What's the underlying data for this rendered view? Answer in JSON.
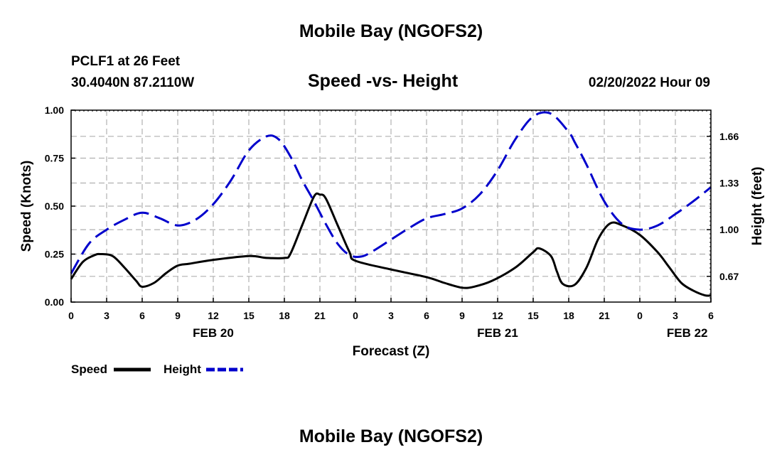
{
  "header": {
    "title": "Mobile Bay (NGOFS2)",
    "station": "PCLF1 at 26 Feet",
    "coords": "30.4040N  87.2110W",
    "datetime": "02/20/2022 Hour 09"
  },
  "footer": {
    "title": "Mobile Bay (NGOFS2)"
  },
  "colors": {
    "speed": "#000000",
    "height": "#0000cc",
    "grid": "#b0b0b0"
  },
  "chart_data": {
    "type": "line",
    "title": "Speed -vs- Height",
    "xlabel": "Forecast (Z)",
    "ylabel": "Speed (Knots)",
    "y2label": "Height (feet)",
    "xlim": [
      0,
      54
    ],
    "ylim": [
      0,
      1.0
    ],
    "y2lim": [
      0.488,
      1.845
    ],
    "grid": true,
    "x_ticks": [
      0,
      3,
      6,
      9,
      12,
      15,
      18,
      21,
      24,
      27,
      30,
      33,
      36,
      39,
      42,
      45,
      48,
      51,
      54
    ],
    "x_tick_labels": [
      "0",
      "3",
      "6",
      "9",
      "12",
      "15",
      "18",
      "21",
      "0",
      "3",
      "6",
      "9",
      "12",
      "15",
      "18",
      "21",
      "0",
      "3",
      "6"
    ],
    "day_labels": [
      {
        "label": "FEB 20",
        "x": 12
      },
      {
        "label": "FEB 21",
        "x": 36
      },
      {
        "label": "FEB 22",
        "x": 52
      }
    ],
    "y_ticks": [
      0,
      0.25,
      0.5,
      0.75,
      1.0
    ],
    "y_tick_labels": [
      "0.00",
      "0.25",
      "0.50",
      "0.75",
      "1.00"
    ],
    "y2_ticks": [
      0.67,
      1.0,
      1.33,
      1.66
    ],
    "y2_tick_labels": [
      "0.67",
      "1.00",
      "1.33",
      "1.66"
    ],
    "legend": [
      {
        "label": "Speed",
        "style": "solid"
      },
      {
        "label": "Height",
        "style": "dashed"
      }
    ],
    "series": [
      {
        "name": "Speed",
        "axis": "left",
        "x": [
          0,
          1,
          2,
          2.5,
          3.5,
          4.5,
          5.5,
          6,
          7,
          8,
          9,
          10,
          12,
          15,
          16.5,
          18,
          18.5,
          19.5,
          20.5,
          21,
          21.5,
          22.5,
          23.5,
          24,
          27,
          30,
          31.5,
          33,
          34,
          35.5,
          37.5,
          39,
          39.5,
          40.5,
          41,
          41.5,
          42.5,
          43.5,
          44.5,
          45.5,
          46.5,
          48,
          49.5,
          50.5,
          51.5,
          52.5,
          53.5,
          54
        ],
        "values": [
          0.12,
          0.21,
          0.245,
          0.25,
          0.24,
          0.18,
          0.11,
          0.08,
          0.1,
          0.15,
          0.19,
          0.2,
          0.22,
          0.24,
          0.23,
          0.23,
          0.25,
          0.4,
          0.55,
          0.56,
          0.54,
          0.4,
          0.26,
          0.215,
          0.17,
          0.13,
          0.1,
          0.075,
          0.08,
          0.11,
          0.18,
          0.26,
          0.28,
          0.24,
          0.16,
          0.095,
          0.09,
          0.18,
          0.33,
          0.41,
          0.4,
          0.35,
          0.26,
          0.18,
          0.1,
          0.06,
          0.035,
          0.035
        ]
      },
      {
        "name": "Height",
        "axis": "right",
        "x": [
          0,
          1.5,
          3,
          4.5,
          6,
          7.5,
          9,
          10.5,
          12,
          13.5,
          15,
          16.5,
          17.5,
          18.5,
          19.5,
          20.5,
          21.5,
          22.5,
          23.5,
          24.5,
          25.5,
          27,
          28.5,
          30,
          31.5,
          33,
          34.5,
          36,
          37.5,
          39,
          40.5,
          42,
          42.5,
          43.5,
          45,
          46.5,
          48,
          49.5,
          51,
          52.5,
          54
        ],
        "values": [
          0.69,
          0.9,
          1.0,
          1.07,
          1.12,
          1.08,
          1.03,
          1.07,
          1.18,
          1.35,
          1.56,
          1.66,
          1.64,
          1.52,
          1.35,
          1.2,
          1.04,
          0.9,
          0.82,
          0.81,
          0.85,
          0.93,
          1.01,
          1.08,
          1.11,
          1.15,
          1.25,
          1.42,
          1.64,
          1.8,
          1.82,
          1.69,
          1.62,
          1.46,
          1.2,
          1.04,
          1.0,
          1.03,
          1.11,
          1.2,
          1.3
        ]
      }
    ]
  }
}
